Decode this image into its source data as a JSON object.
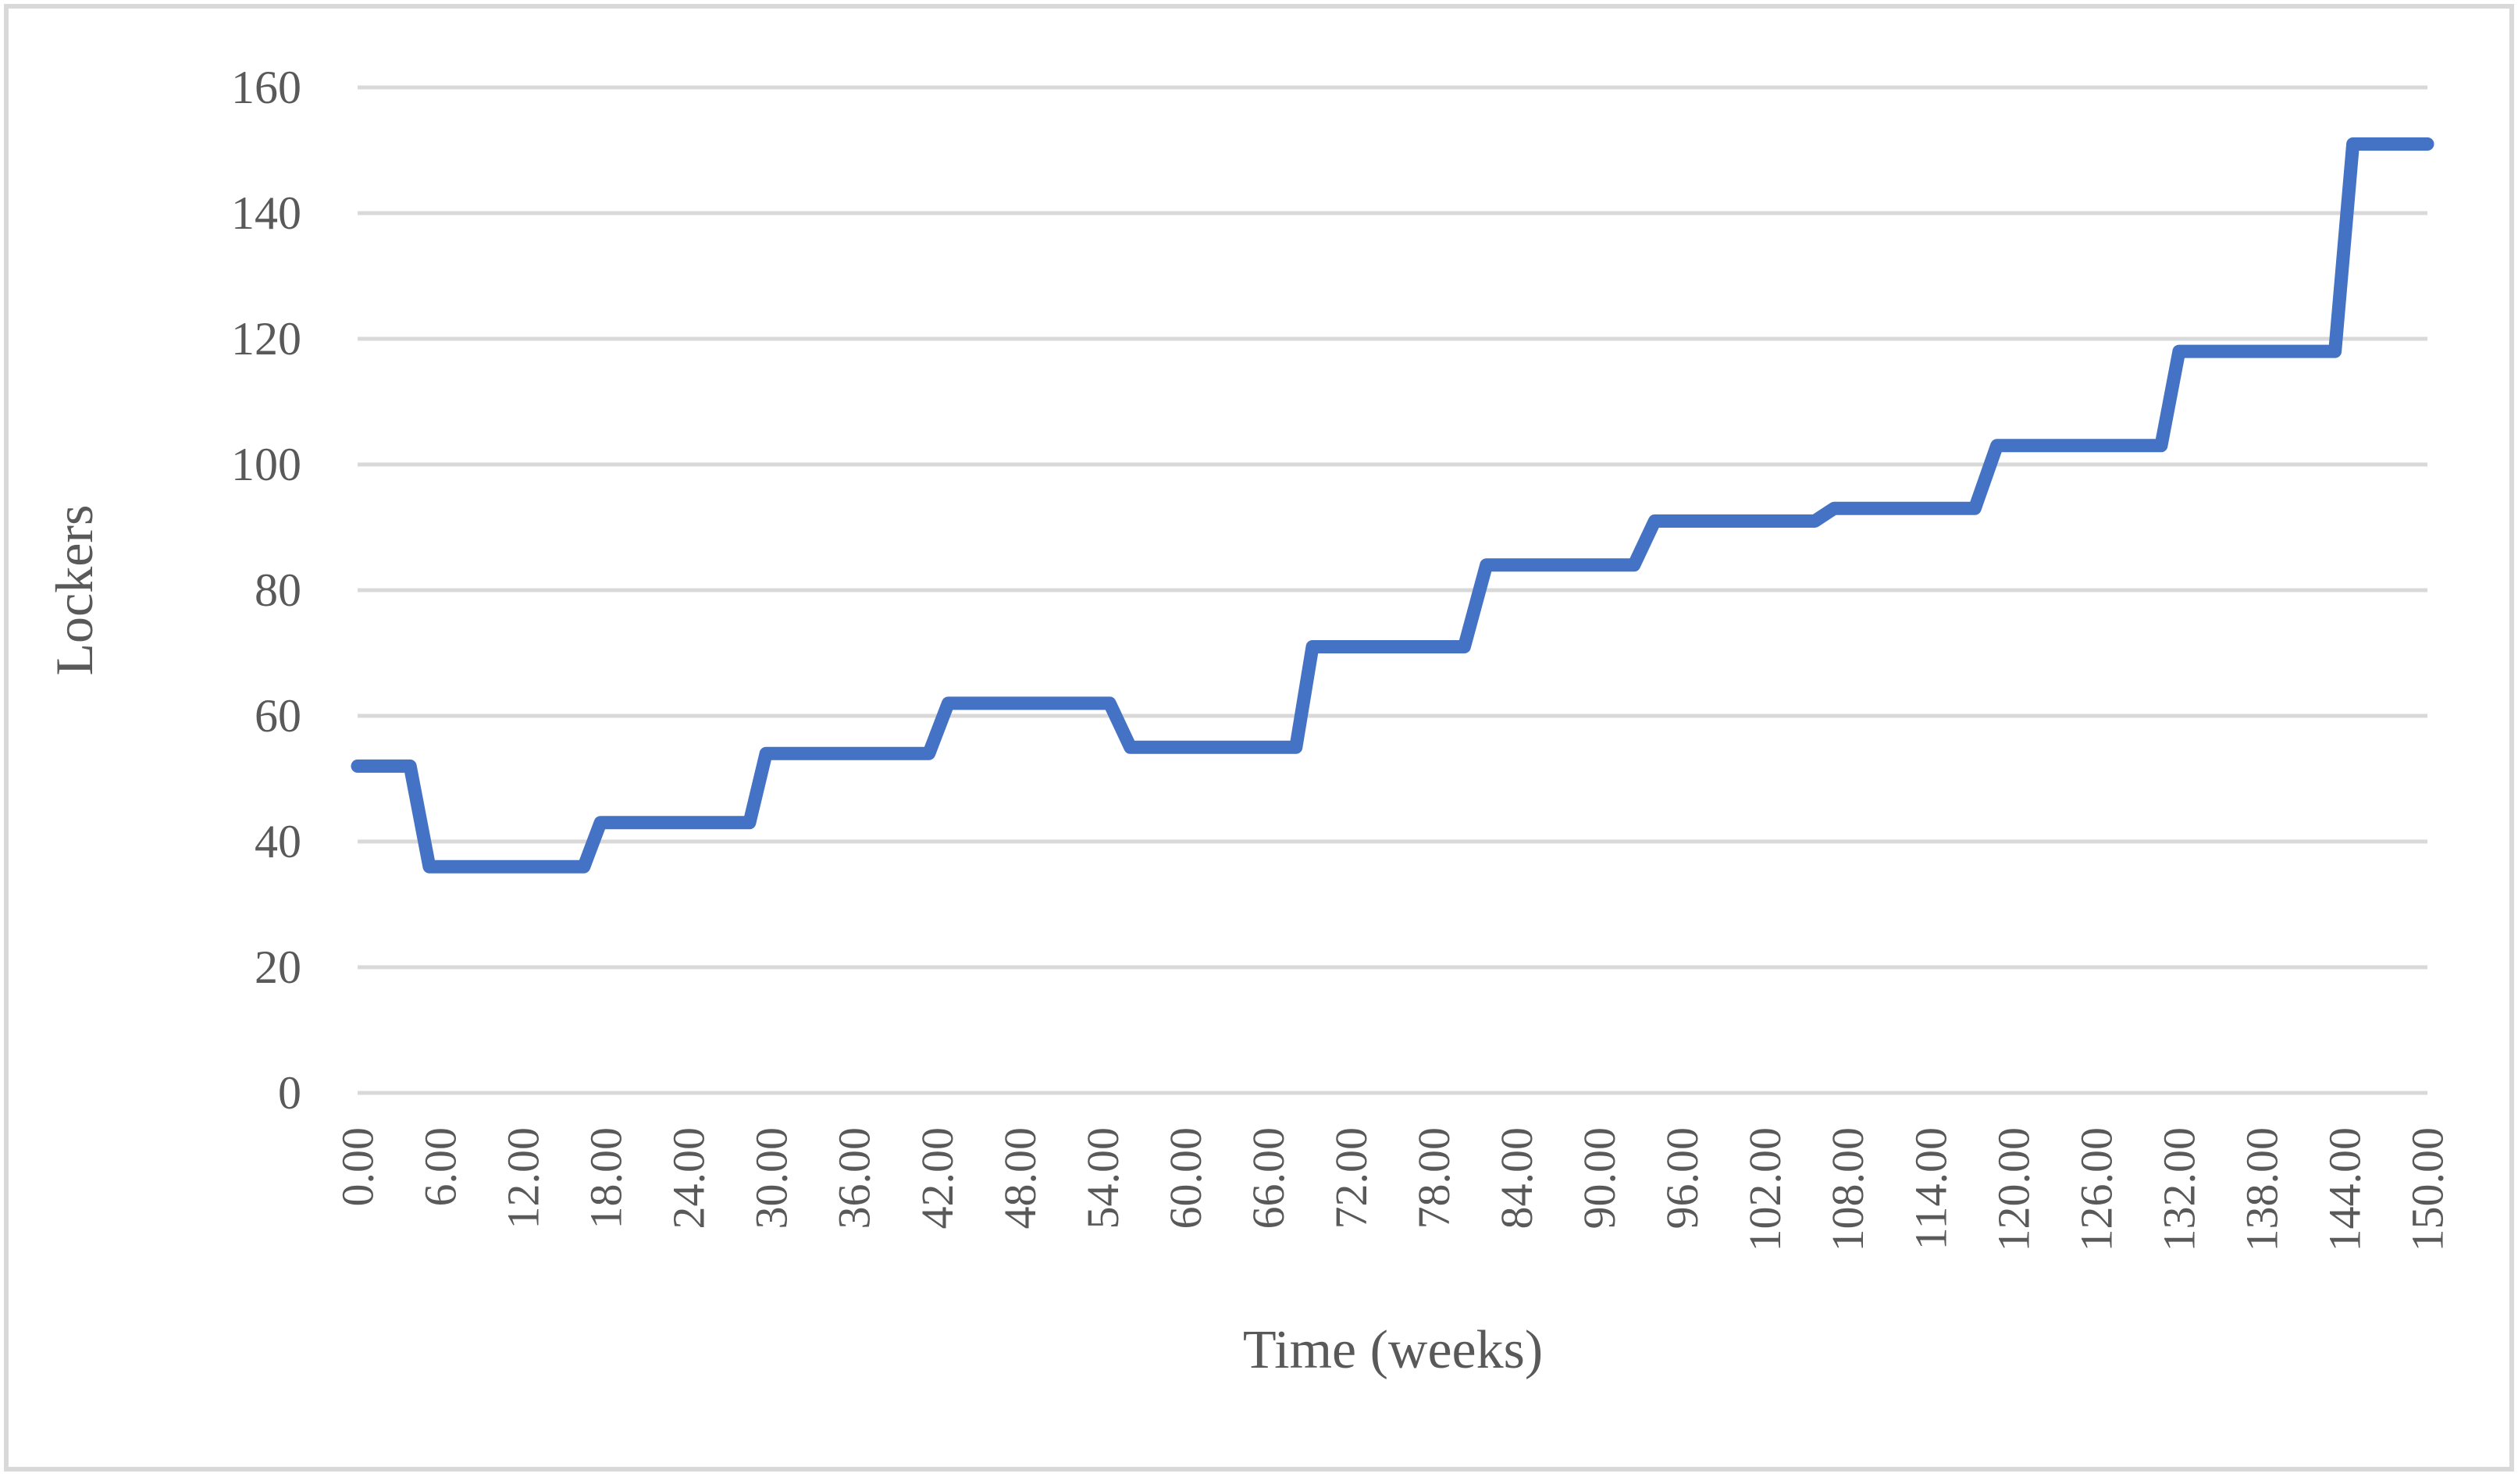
{
  "chart_data": {
    "type": "line",
    "title": "",
    "xlabel": "Time (weeks)",
    "ylabel": "Lockers",
    "xlim": [
      0,
      150
    ],
    "ylim": [
      0,
      160
    ],
    "grid": "horizontal-only",
    "legend_position": "none",
    "y_ticks": [
      0,
      20,
      40,
      60,
      80,
      100,
      120,
      140,
      160
    ],
    "x_ticks": [
      0,
      6,
      12,
      18,
      24,
      30,
      36,
      42,
      48,
      54,
      60,
      66,
      72,
      78,
      84,
      90,
      96,
      102,
      108,
      114,
      120,
      126,
      132,
      138,
      144,
      150
    ],
    "x_tick_labels": [
      "0.00",
      "6.00",
      "12.00",
      "18.00",
      "24.00",
      "30.00",
      "36.00",
      "42.00",
      "48.00",
      "54.00",
      "60.00",
      "66.00",
      "72.00",
      "78.00",
      "84.00",
      "90.00",
      "96.00",
      "102.00",
      "108.00",
      "114.00",
      "120.00",
      "126.00",
      "132.00",
      "138.00",
      "144.00",
      "150.00"
    ],
    "series": [
      {
        "name": "Lockers",
        "color": "#4472C4",
        "points": [
          [
            0,
            52
          ],
          [
            3.8,
            52
          ],
          [
            5.2,
            36
          ],
          [
            16.4,
            36
          ],
          [
            17.6,
            43
          ],
          [
            28.4,
            43
          ],
          [
            29.6,
            54
          ],
          [
            41.4,
            54
          ],
          [
            42.8,
            62
          ],
          [
            54.5,
            62
          ],
          [
            56.0,
            55
          ],
          [
            68.0,
            55
          ],
          [
            69.2,
            71
          ],
          [
            80.2,
            71
          ],
          [
            81.8,
            84
          ],
          [
            92.5,
            84
          ],
          [
            94.0,
            91
          ],
          [
            105.6,
            91
          ],
          [
            107.0,
            93
          ],
          [
            117.2,
            93
          ],
          [
            118.8,
            103
          ],
          [
            130.7,
            103
          ],
          [
            132.0,
            118
          ],
          [
            143.3,
            118
          ],
          [
            144.6,
            151
          ],
          [
            150,
            151
          ]
        ]
      }
    ]
  },
  "style": {
    "series_color": "#4472C4",
    "gridline_color": "#D9D9D9",
    "axis_text_color": "#595959",
    "border_color": "#D9D9D9",
    "background": "#FFFFFF"
  }
}
